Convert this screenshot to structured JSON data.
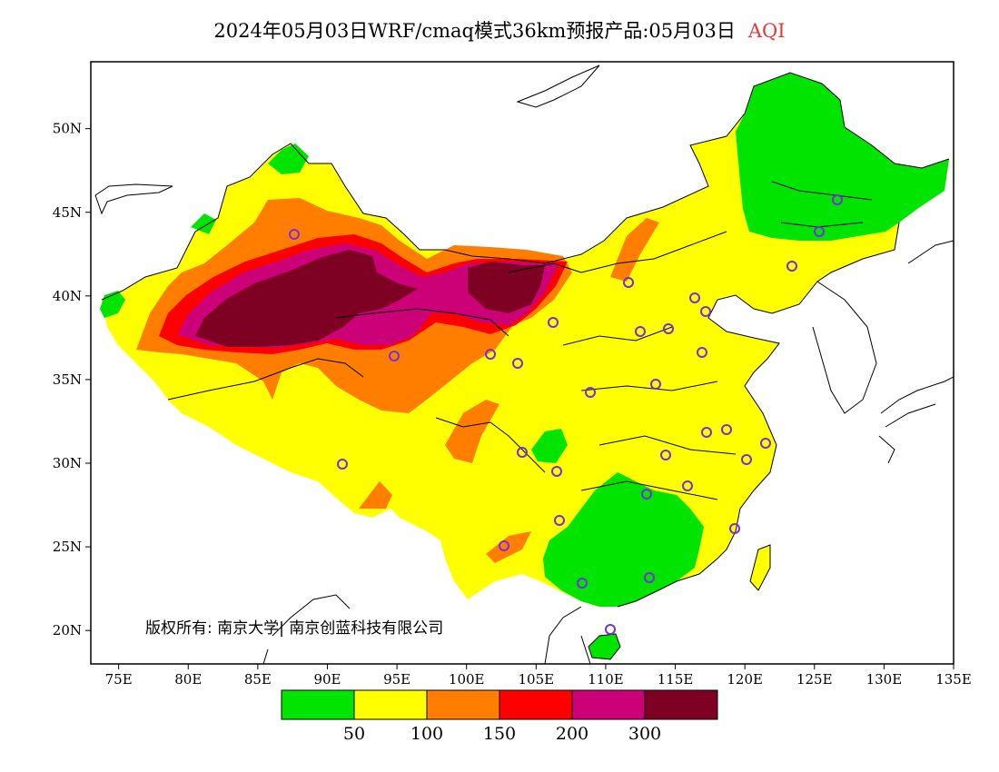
{
  "title": {
    "main": "2024年05月03日WRF/cmaq模式36km预报产品:05月03日",
    "variable": "AQI",
    "variable_color": "#e23a3a"
  },
  "axes": {
    "x_ticks": [
      "75E",
      "80E",
      "85E",
      "90E",
      "95E",
      "100E",
      "105E",
      "110E",
      "115E",
      "120E",
      "125E",
      "130E",
      "135E"
    ],
    "y_ticks": [
      "20N",
      "25N",
      "30N",
      "35N",
      "40N",
      "45N",
      "50N"
    ]
  },
  "copyright": "版权所有: 南京大学| 南京创蓝科技有限公司",
  "legend": {
    "colors": [
      "#00e400",
      "#ffff00",
      "#ff7e00",
      "#ff0000",
      "#cc0077",
      "#7e0023"
    ],
    "labels": [
      "50",
      "100",
      "150",
      "200",
      "300"
    ]
  },
  "colors": {
    "good": "#00e400",
    "moderate": "#ffff00",
    "sensitive": "#ff7e00",
    "unhealthy": "#ff0000",
    "very_unhealthy": "#cc0077",
    "hazardous": "#7e0023",
    "station_marker": "#7b2be2"
  }
}
